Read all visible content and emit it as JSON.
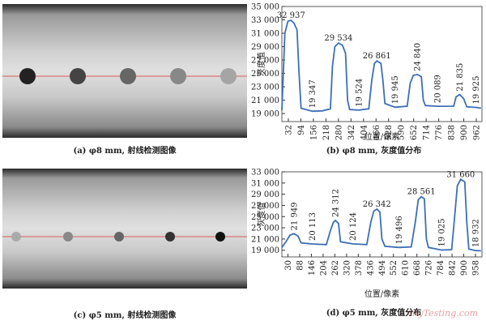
{
  "images": [
    {
      "caption": "(a) φ8 mm, 射线检测图像"
    },
    {
      "caption": "(c) φ5 mm, 射线检测图像"
    }
  ],
  "watermark": "AnyTesting.com",
  "chart_data": [
    {
      "type": "line",
      "caption": "(b) φ8 mm, 灰度值分布",
      "xlabel": "位置/像素",
      "ylabel": "灰度值",
      "xlim": [
        0,
        990
      ],
      "ylim": [
        17800,
        35000
      ],
      "xticks": [
        32,
        94,
        156,
        218,
        280,
        342,
        404,
        466,
        528,
        590,
        652,
        714,
        776,
        838,
        900,
        962
      ],
      "yticks": [
        {
          "value": 19000,
          "label": "19 000"
        },
        {
          "value": 21000,
          "label": "21 000"
        },
        {
          "value": 23000,
          "label": "23 000"
        },
        {
          "value": 25000,
          "label": "25 000"
        },
        {
          "value": 27000,
          "label": "27 000"
        },
        {
          "value": 29000,
          "label": "29 000"
        },
        {
          "value": 31000,
          "label": "31 000"
        },
        {
          "value": 33000,
          "label": "33 000"
        },
        {
          "value": 35000,
          "label": "35 000"
        }
      ],
      "x": [
        0,
        15,
        30,
        45,
        60,
        75,
        85,
        95,
        150,
        200,
        240,
        250,
        262,
        280,
        300,
        315,
        325,
        335,
        380,
        430,
        445,
        458,
        470,
        490,
        500,
        510,
        560,
        620,
        635,
        650,
        670,
        690,
        700,
        710,
        770,
        850,
        862,
        880,
        900,
        915,
        960,
        985
      ],
      "series": [
        {
          "color": "#3c6fb6",
          "values": [
            19500,
            31000,
            32800,
            32937,
            32500,
            31500,
            25000,
            19800,
            19347,
            19400,
            19700,
            26000,
            29000,
            29534,
            29200,
            28000,
            21000,
            19600,
            19524,
            19700,
            24000,
            26500,
            26861,
            26500,
            24000,
            20500,
            19945,
            20100,
            23500,
            24700,
            24840,
            24500,
            21000,
            20200,
            20089,
            20100,
            21500,
            21835,
            21200,
            20000,
            19925,
            19800
          ]
        }
      ],
      "annotations": [
        {
          "x": 45,
          "y": 32937,
          "label": "32 937"
        },
        {
          "x": 150,
          "y": 19347,
          "label": "19 347"
        },
        {
          "x": 280,
          "y": 29534,
          "label": "29 534"
        },
        {
          "x": 380,
          "y": 19524,
          "label": "19 524"
        },
        {
          "x": 470,
          "y": 26861,
          "label": "26 861"
        },
        {
          "x": 560,
          "y": 19945,
          "label": "19 945"
        },
        {
          "x": 670,
          "y": 24840,
          "label": "24 840"
        },
        {
          "x": 770,
          "y": 20089,
          "label": "20 089"
        },
        {
          "x": 880,
          "y": 21835,
          "label": "21 835"
        },
        {
          "x": 960,
          "y": 19925,
          "label": "19 925"
        }
      ]
    },
    {
      "type": "line",
      "caption": "(d) φ5 mm, 灰度值分布",
      "xlabel": "位置/像素",
      "ylabel": "灰度值",
      "xlim": [
        0,
        990
      ],
      "ylim": [
        17800,
        33000
      ],
      "xticks": [
        30,
        88,
        146,
        204,
        262,
        320,
        378,
        436,
        494,
        552,
        610,
        668,
        726,
        784,
        842,
        900,
        958
      ],
      "yticks": [
        {
          "value": 19000,
          "label": "19 000"
        },
        {
          "value": 21000,
          "label": "21 000"
        },
        {
          "value": 23000,
          "label": "23 000"
        },
        {
          "value": 25000,
          "label": "25 000"
        },
        {
          "value": 27000,
          "label": "27 000"
        },
        {
          "value": 29000,
          "label": "29 000"
        },
        {
          "value": 31000,
          "label": "31 000"
        },
        {
          "value": 33000,
          "label": "33 000"
        }
      ],
      "x": [
        0,
        20,
        40,
        60,
        80,
        95,
        150,
        220,
        240,
        255,
        265,
        280,
        290,
        350,
        420,
        440,
        455,
        470,
        485,
        495,
        510,
        580,
        640,
        660,
        675,
        690,
        705,
        715,
        725,
        790,
        840,
        855,
        868,
        885,
        905,
        915,
        925,
        958,
        985
      ],
      "series": [
        {
          "color": "#3c6fb6",
          "values": [
            19500,
            20500,
            21700,
            21949,
            21500,
            20300,
            20113,
            20000,
            22500,
            24000,
            24312,
            23800,
            20500,
            20124,
            20000,
            24000,
            26000,
            26342,
            25800,
            21000,
            19700,
            19496,
            19600,
            24000,
            28000,
            28561,
            28200,
            21000,
            19500,
            19025,
            19100,
            25000,
            30500,
            31660,
            31200,
            24000,
            19200,
            18932,
            18900
          ]
        }
      ],
      "annotations": [
        {
          "x": 60,
          "y": 21949,
          "label": "21 949"
        },
        {
          "x": 150,
          "y": 20113,
          "label": "20 113"
        },
        {
          "x": 265,
          "y": 24312,
          "label": "24 312"
        },
        {
          "x": 350,
          "y": 20124,
          "label": "20 124"
        },
        {
          "x": 470,
          "y": 26342,
          "label": "26 342"
        },
        {
          "x": 580,
          "y": 19496,
          "label": "19 496"
        },
        {
          "x": 690,
          "y": 28561,
          "label": "28 561"
        },
        {
          "x": 790,
          "y": 19025,
          "label": "19 025"
        },
        {
          "x": 885,
          "y": 31660,
          "label": "31 660"
        },
        {
          "x": 958,
          "y": 18932,
          "label": "18 932"
        }
      ]
    }
  ]
}
